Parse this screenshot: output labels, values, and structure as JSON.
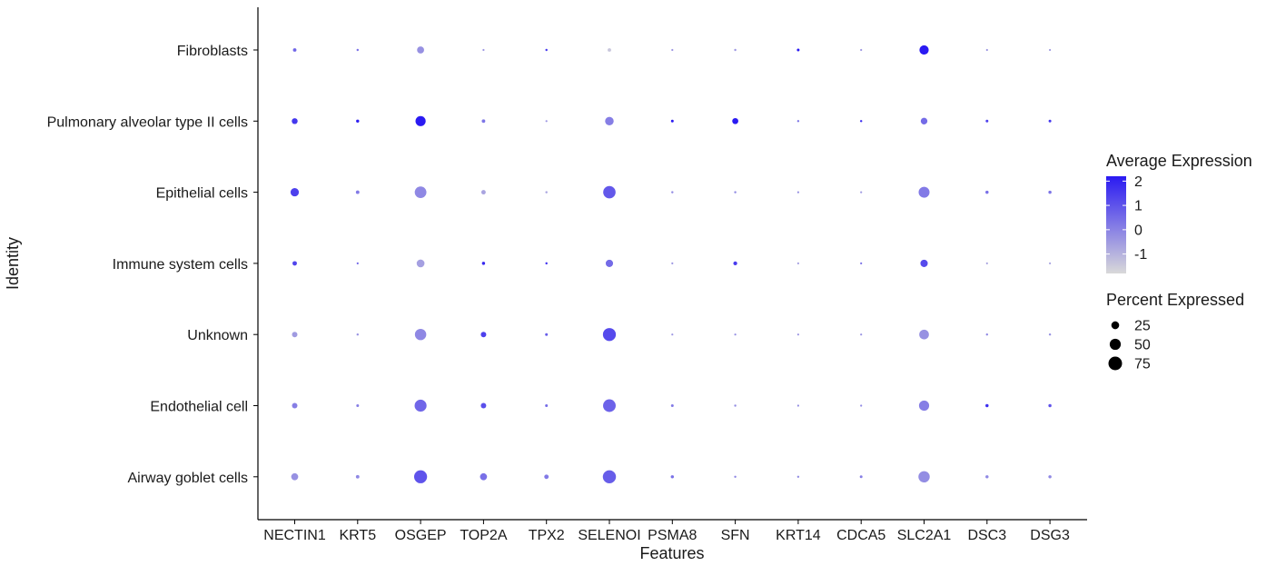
{
  "chart_data": {
    "type": "dotplot",
    "xlabel": "Features",
    "ylabel": "Identity",
    "features": [
      "NECTIN1",
      "KRT5",
      "OSGEP",
      "TOP2A",
      "TPX2",
      "SELENOI",
      "PSMA8",
      "SFN",
      "KRT14",
      "CDCA5",
      "SLC2A1",
      "DSC3",
      "DSG3"
    ],
    "identities": [
      "Fibroblasts",
      "Pulmonary alveolar type II cells",
      "Epithelial cells",
      "Immune system cells",
      "Unknown",
      "Endothelial cell",
      "Airway goblet cells"
    ],
    "color_scale": {
      "title": "Average Expression",
      "ticks": [
        2,
        1,
        0,
        -1
      ],
      "low_color": "#d9d9d9",
      "high_color": "#2a1af2",
      "range": [
        -1.8,
        2.2
      ]
    },
    "size_scale": {
      "title": "Percent Expressed",
      "ticks": [
        25,
        50,
        75
      ],
      "max_percent": 90
    },
    "points": [
      {
        "identity": "Fibroblasts",
        "feature": "NECTIN1",
        "avg_exp": 0.6,
        "pct_exp": 5
      },
      {
        "identity": "Fibroblasts",
        "feature": "KRT5",
        "avg_exp": 0.4,
        "pct_exp": 2
      },
      {
        "identity": "Fibroblasts",
        "feature": "OSGEP",
        "avg_exp": -0.3,
        "pct_exp": 20
      },
      {
        "identity": "Fibroblasts",
        "feature": "TOP2A",
        "avg_exp": -0.4,
        "pct_exp": 1
      },
      {
        "identity": "Fibroblasts",
        "feature": "TPX2",
        "avg_exp": 1.6,
        "pct_exp": 2
      },
      {
        "identity": "Fibroblasts",
        "feature": "SELENOI",
        "avg_exp": -1.4,
        "pct_exp": 5
      },
      {
        "identity": "Fibroblasts",
        "feature": "PSMA8",
        "avg_exp": -0.4,
        "pct_exp": 1
      },
      {
        "identity": "Fibroblasts",
        "feature": "SFN",
        "avg_exp": -0.4,
        "pct_exp": 2
      },
      {
        "identity": "Fibroblasts",
        "feature": "KRT14",
        "avg_exp": 2.2,
        "pct_exp": 3
      },
      {
        "identity": "Fibroblasts",
        "feature": "CDCA5",
        "avg_exp": -0.4,
        "pct_exp": 1
      },
      {
        "identity": "Fibroblasts",
        "feature": "SLC2A1",
        "avg_exp": 2.2,
        "pct_exp": 35
      },
      {
        "identity": "Fibroblasts",
        "feature": "DSC3",
        "avg_exp": -0.4,
        "pct_exp": 0.5
      },
      {
        "identity": "Fibroblasts",
        "feature": "DSG3",
        "avg_exp": -0.5,
        "pct_exp": 0.5
      },
      {
        "identity": "Pulmonary alveolar type II cells",
        "feature": "NECTIN1",
        "avg_exp": 1.6,
        "pct_exp": 14
      },
      {
        "identity": "Pulmonary alveolar type II cells",
        "feature": "KRT5",
        "avg_exp": 2.1,
        "pct_exp": 4
      },
      {
        "identity": "Pulmonary alveolar type II cells",
        "feature": "OSGEP",
        "avg_exp": 2.2,
        "pct_exp": 42
      },
      {
        "identity": "Pulmonary alveolar type II cells",
        "feature": "TOP2A",
        "avg_exp": 0.3,
        "pct_exp": 5
      },
      {
        "identity": "Pulmonary alveolar type II cells",
        "feature": "TPX2",
        "avg_exp": -0.4,
        "pct_exp": 1
      },
      {
        "identity": "Pulmonary alveolar type II cells",
        "feature": "SELENOI",
        "avg_exp": 0.1,
        "pct_exp": 30
      },
      {
        "identity": "Pulmonary alveolar type II cells",
        "feature": "PSMA8",
        "avg_exp": 2.2,
        "pct_exp": 3
      },
      {
        "identity": "Pulmonary alveolar type II cells",
        "feature": "SFN",
        "avg_exp": 2.2,
        "pct_exp": 15
      },
      {
        "identity": "Pulmonary alveolar type II cells",
        "feature": "KRT14",
        "avg_exp": 0.3,
        "pct_exp": 2
      },
      {
        "identity": "Pulmonary alveolar type II cells",
        "feature": "CDCA5",
        "avg_exp": 1.9,
        "pct_exp": 2
      },
      {
        "identity": "Pulmonary alveolar type II cells",
        "feature": "SLC2A1",
        "avg_exp": 0.5,
        "pct_exp": 18
      },
      {
        "identity": "Pulmonary alveolar type II cells",
        "feature": "DSC3",
        "avg_exp": 1.4,
        "pct_exp": 3
      },
      {
        "identity": "Pulmonary alveolar type II cells",
        "feature": "DSG3",
        "avg_exp": 1.6,
        "pct_exp": 3
      },
      {
        "identity": "Epithelial cells",
        "feature": "NECTIN1",
        "avg_exp": 1.4,
        "pct_exp": 28
      },
      {
        "identity": "Epithelial cells",
        "feature": "KRT5",
        "avg_exp": 0.2,
        "pct_exp": 5
      },
      {
        "identity": "Epithelial cells",
        "feature": "OSGEP",
        "avg_exp": -0.1,
        "pct_exp": 55
      },
      {
        "identity": "Epithelial cells",
        "feature": "TOP2A",
        "avg_exp": -0.7,
        "pct_exp": 8
      },
      {
        "identity": "Epithelial cells",
        "feature": "TPX2",
        "avg_exp": -0.7,
        "pct_exp": 2
      },
      {
        "identity": "Epithelial cells",
        "feature": "SELENOI",
        "avg_exp": 0.9,
        "pct_exp": 62
      },
      {
        "identity": "Epithelial cells",
        "feature": "PSMA8",
        "avg_exp": -0.2,
        "pct_exp": 2
      },
      {
        "identity": "Epithelial cells",
        "feature": "SFN",
        "avg_exp": -0.2,
        "pct_exp": 2
      },
      {
        "identity": "Epithelial cells",
        "feature": "KRT14",
        "avg_exp": -0.3,
        "pct_exp": 1
      },
      {
        "identity": "Epithelial cells",
        "feature": "CDCA5",
        "avg_exp": -0.5,
        "pct_exp": 1
      },
      {
        "identity": "Epithelial cells",
        "feature": "SLC2A1",
        "avg_exp": 0.2,
        "pct_exp": 48
      },
      {
        "identity": "Epithelial cells",
        "feature": "DSC3",
        "avg_exp": 0.4,
        "pct_exp": 4
      },
      {
        "identity": "Epithelial cells",
        "feature": "DSG3",
        "avg_exp": 0.3,
        "pct_exp": 4
      },
      {
        "identity": "Immune system cells",
        "feature": "NECTIN1",
        "avg_exp": 1.3,
        "pct_exp": 8
      },
      {
        "identity": "Immune system cells",
        "feature": "KRT5",
        "avg_exp": 0.6,
        "pct_exp": 1
      },
      {
        "identity": "Immune system cells",
        "feature": "OSGEP",
        "avg_exp": -0.6,
        "pct_exp": 25
      },
      {
        "identity": "Immune system cells",
        "feature": "TOP2A",
        "avg_exp": 1.9,
        "pct_exp": 4
      },
      {
        "identity": "Immune system cells",
        "feature": "TPX2",
        "avg_exp": 1.8,
        "pct_exp": 2
      },
      {
        "identity": "Immune system cells",
        "feature": "SELENOI",
        "avg_exp": 0.5,
        "pct_exp": 22
      },
      {
        "identity": "Immune system cells",
        "feature": "PSMA8",
        "avg_exp": -0.4,
        "pct_exp": 0.5
      },
      {
        "identity": "Immune system cells",
        "feature": "SFN",
        "avg_exp": 1.5,
        "pct_exp": 6
      },
      {
        "identity": "Immune system cells",
        "feature": "KRT14",
        "avg_exp": -0.6,
        "pct_exp": 0.5
      },
      {
        "identity": "Immune system cells",
        "feature": "CDCA5",
        "avg_exp": 0.4,
        "pct_exp": 1
      },
      {
        "identity": "Immune system cells",
        "feature": "SLC2A1",
        "avg_exp": 1.2,
        "pct_exp": 22
      },
      {
        "identity": "Immune system cells",
        "feature": "DSC3",
        "avg_exp": -0.7,
        "pct_exp": 0.5
      },
      {
        "identity": "Immune system cells",
        "feature": "DSG3",
        "avg_exp": -0.7,
        "pct_exp": 0.5
      },
      {
        "identity": "Unknown",
        "feature": "NECTIN1",
        "avg_exp": -0.5,
        "pct_exp": 12
      },
      {
        "identity": "Unknown",
        "feature": "KRT5",
        "avg_exp": -0.3,
        "pct_exp": 2
      },
      {
        "identity": "Unknown",
        "feature": "OSGEP",
        "avg_exp": -0.1,
        "pct_exp": 52
      },
      {
        "identity": "Unknown",
        "feature": "TOP2A",
        "avg_exp": 1.4,
        "pct_exp": 12
      },
      {
        "identity": "Unknown",
        "feature": "TPX2",
        "avg_exp": 0.8,
        "pct_exp": 3
      },
      {
        "identity": "Unknown",
        "feature": "SELENOI",
        "avg_exp": 1.2,
        "pct_exp": 68
      },
      {
        "identity": "Unknown",
        "feature": "PSMA8",
        "avg_exp": -0.4,
        "pct_exp": 1
      },
      {
        "identity": "Unknown",
        "feature": "SFN",
        "avg_exp": -0.2,
        "pct_exp": 1
      },
      {
        "identity": "Unknown",
        "feature": "KRT14",
        "avg_exp": -0.4,
        "pct_exp": 1
      },
      {
        "identity": "Unknown",
        "feature": "CDCA5",
        "avg_exp": -0.3,
        "pct_exp": 1
      },
      {
        "identity": "Unknown",
        "feature": "SLC2A1",
        "avg_exp": -0.3,
        "pct_exp": 38
      },
      {
        "identity": "Unknown",
        "feature": "DSC3",
        "avg_exp": -0.1,
        "pct_exp": 2
      },
      {
        "identity": "Unknown",
        "feature": "DSG3",
        "avg_exp": -0.3,
        "pct_exp": 2
      },
      {
        "identity": "Endothelial cell",
        "feature": "NECTIN1",
        "avg_exp": 0.1,
        "pct_exp": 12
      },
      {
        "identity": "Endothelial cell",
        "feature": "KRT5",
        "avg_exp": 0.1,
        "pct_exp": 3
      },
      {
        "identity": "Endothelial cell",
        "feature": "OSGEP",
        "avg_exp": 0.6,
        "pct_exp": 58
      },
      {
        "identity": "Endothelial cell",
        "feature": "TOP2A",
        "avg_exp": 1.1,
        "pct_exp": 12
      },
      {
        "identity": "Endothelial cell",
        "feature": "TPX2",
        "avg_exp": 0.5,
        "pct_exp": 3
      },
      {
        "identity": "Endothelial cell",
        "feature": "SELENOI",
        "avg_exp": 0.7,
        "pct_exp": 65
      },
      {
        "identity": "Endothelial cell",
        "feature": "PSMA8",
        "avg_exp": 0.2,
        "pct_exp": 3
      },
      {
        "identity": "Endothelial cell",
        "feature": "SFN",
        "avg_exp": -0.2,
        "pct_exp": 2
      },
      {
        "identity": "Endothelial cell",
        "feature": "KRT14",
        "avg_exp": -0.2,
        "pct_exp": 1
      },
      {
        "identity": "Endothelial cell",
        "feature": "CDCA5",
        "avg_exp": -0.1,
        "pct_exp": 1
      },
      {
        "identity": "Endothelial cell",
        "feature": "SLC2A1",
        "avg_exp": 0.1,
        "pct_exp": 42
      },
      {
        "identity": "Endothelial cell",
        "feature": "DSC3",
        "avg_exp": 1.8,
        "pct_exp": 4
      },
      {
        "identity": "Endothelial cell",
        "feature": "DSG3",
        "avg_exp": 1.0,
        "pct_exp": 4
      },
      {
        "identity": "Airway goblet cells",
        "feature": "NECTIN1",
        "avg_exp": -0.3,
        "pct_exp": 20
      },
      {
        "identity": "Airway goblet cells",
        "feature": "KRT5",
        "avg_exp": -0.1,
        "pct_exp": 5
      },
      {
        "identity": "Airway goblet cells",
        "feature": "OSGEP",
        "avg_exp": 1.0,
        "pct_exp": 68
      },
      {
        "identity": "Airway goblet cells",
        "feature": "TOP2A",
        "avg_exp": 0.4,
        "pct_exp": 20
      },
      {
        "identity": "Airway goblet cells",
        "feature": "TPX2",
        "avg_exp": 0.2,
        "pct_exp": 8
      },
      {
        "identity": "Airway goblet cells",
        "feature": "SELENOI",
        "avg_exp": 0.8,
        "pct_exp": 70
      },
      {
        "identity": "Airway goblet cells",
        "feature": "PSMA8",
        "avg_exp": 0.4,
        "pct_exp": 4
      },
      {
        "identity": "Airway goblet cells",
        "feature": "SFN",
        "avg_exp": -0.1,
        "pct_exp": 2
      },
      {
        "identity": "Airway goblet cells",
        "feature": "KRT14",
        "avg_exp": -0.2,
        "pct_exp": 2
      },
      {
        "identity": "Airway goblet cells",
        "feature": "CDCA5",
        "avg_exp": 0.1,
        "pct_exp": 3
      },
      {
        "identity": "Airway goblet cells",
        "feature": "SLC2A1",
        "avg_exp": -0.2,
        "pct_exp": 52
      },
      {
        "identity": "Airway goblet cells",
        "feature": "DSC3",
        "avg_exp": -0.1,
        "pct_exp": 4
      },
      {
        "identity": "Airway goblet cells",
        "feature": "DSG3",
        "avg_exp": -0.1,
        "pct_exp": 4
      }
    ]
  }
}
